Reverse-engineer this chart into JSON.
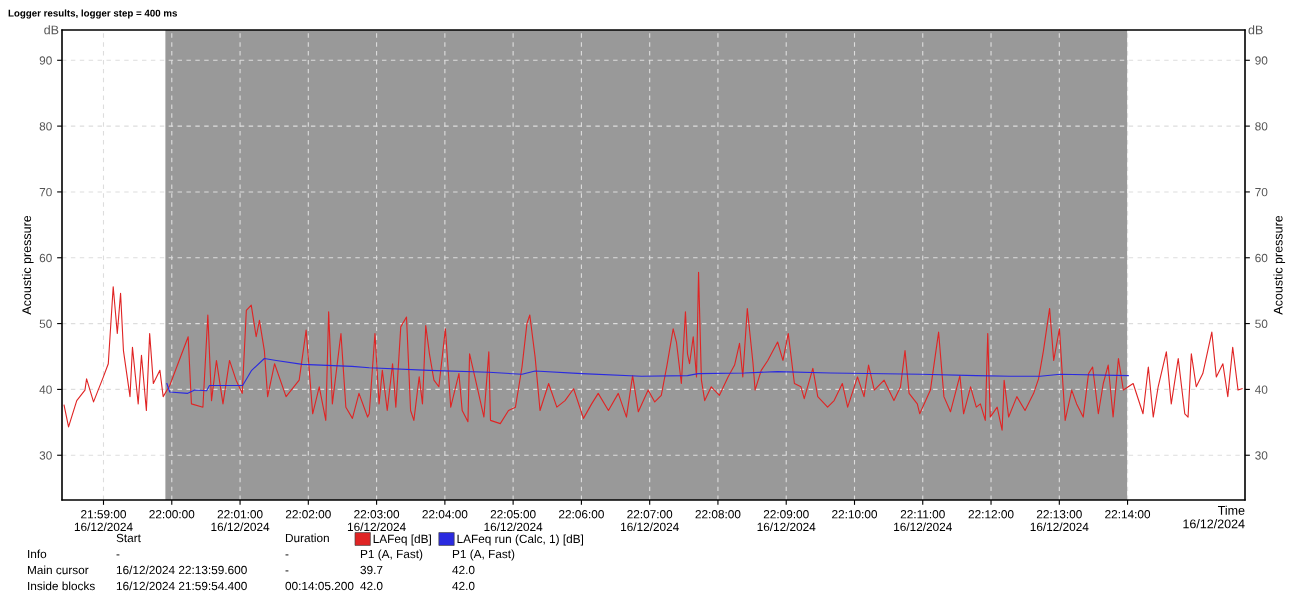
{
  "chart_data": {
    "type": "line",
    "title": "Logger results, logger step = 400 ms",
    "xlabel": "Time\n16/12/2024",
    "ylabel": "Acoustic pressure",
    "y2label": "Acoustic pressure",
    "annotations": [
      "dB",
      "dB",
      "Start",
      "Duration",
      "Info",
      "-",
      "-",
      "P1 (A, Fast)",
      "P1 (A, Fast)",
      "Main cursor",
      "16/12/2024 22:13:59.600",
      "-",
      "39.7",
      "42.0",
      "Inside blocks",
      "16/12/2024 21:59:54.400",
      "00:14:05.200",
      "42.0",
      "42.0"
    ],
    "series": [
      {
        "name": "LAFeq [dB]",
        "color": "#e02424",
        "x": [
          21.9737,
          21.9748,
          21.9768,
          21.9788,
          21.9792,
          21.9809,
          21.9833,
          21.9845,
          21.9857,
          21.9867,
          21.9875,
          21.9882,
          21.9898,
          21.9904,
          21.9918,
          21.9926,
          21.9938,
          21.9946,
          21.9955,
          21.9971,
          21.9979,
          21.9995,
          22.004,
          22.0048,
          22.0076,
          22.0088,
          22.0097,
          22.0109,
          22.0125,
          22.0141,
          22.0157,
          22.0172,
          22.0182,
          22.0194,
          22.0206,
          22.0214,
          22.0226,
          22.0234,
          22.0251,
          22.0279,
          22.0311,
          22.0328,
          22.0344,
          22.036,
          22.0376,
          22.0383,
          22.0392,
          22.0413,
          22.0425,
          22.0441,
          22.0457,
          22.0478,
          22.0482,
          22.0496,
          22.0506,
          22.0514,
          22.0526,
          22.0539,
          22.0547,
          22.0559,
          22.0573,
          22.0583,
          22.0591,
          22.0604,
          22.0612,
          22.062,
          22.0629,
          22.064,
          22.0652,
          22.0668,
          22.0681,
          22.0701,
          22.0709,
          22.0723,
          22.0727,
          22.0741,
          22.0762,
          22.0774,
          22.0778,
          22.0802,
          22.0822,
          22.0839,
          22.0855,
          22.0867,
          22.0874,
          22.0887,
          22.0899,
          22.092,
          22.094,
          22.096,
          22.0981,
          22.1005,
          22.1025,
          22.1041,
          22.1066,
          22.109,
          22.111,
          22.1125,
          22.1139,
          22.1163,
          22.1179,
          22.1195,
          22.1209,
          22.1224,
          22.1232,
          22.1244,
          22.1254,
          22.1259,
          22.1264,
          22.1273,
          22.1281,
          22.1286,
          22.1293,
          22.1301,
          22.1317,
          22.1337,
          22.1358,
          22.1374,
          22.1386,
          22.1394,
          22.1405,
          22.1419,
          22.1424,
          22.1439,
          22.1455,
          22.1479,
          22.1492,
          22.1505,
          22.152,
          22.1536,
          22.1544,
          22.1565,
          22.1577,
          22.1601,
          22.1617,
          22.1637,
          22.165,
          22.1674,
          22.169,
          22.1701,
          22.1715,
          22.1739,
          22.1763,
          22.1779,
          22.179,
          22.18,
          22.182,
          22.1826,
          22.1852,
          22.1872,
          22.1885,
          22.1901,
          22.1924,
          22.1933,
          22.195,
          22.1964,
          22.1974,
          22.1986,
          22.1992,
          22.1998,
          22.2015,
          22.2027,
          22.2032,
          22.2043,
          22.2063,
          22.2083,
          22.2104,
          22.2116,
          22.2128,
          22.2143,
          22.2153,
          22.2167,
          22.2181,
          22.2197,
          22.2209,
          22.2225,
          22.2238,
          22.2248,
          22.2262,
          22.2274,
          22.2286,
          22.2298,
          22.2311,
          22.2323,
          22.2335,
          22.2347,
          22.2371,
          22.2384,
          22.2396,
          22.2408,
          22.2428,
          22.244,
          22.2457,
          22.2473,
          22.2481,
          22.2489,
          22.2501,
          22.2517,
          22.2539,
          22.255,
          22.2566,
          22.2578,
          22.259,
          22.2603,
          22.2613
        ],
        "values": [
          37.6,
          34.3,
          38.3,
          39.9,
          41.6,
          38.1,
          41.9,
          43.9,
          55.6,
          48.5,
          54.6,
          45.9,
          38.9,
          46.4,
          37.8,
          45.2,
          36.8,
          48.5,
          40.9,
          42.9,
          38.9,
          40.6,
          48,
          37.8,
          37.3,
          51.3,
          38.3,
          44.4,
          37.8,
          44.4,
          41.4,
          39.4,
          52,
          52.8,
          48,
          50.5,
          45.9,
          38.9,
          43.9,
          38.9,
          41.4,
          49,
          36.3,
          40.4,
          35.3,
          51.8,
          37.8,
          48.5,
          37.3,
          35.6,
          39.4,
          35.8,
          36.3,
          48.5,
          37.8,
          42.9,
          36.8,
          43.9,
          37.3,
          49.5,
          51,
          36.8,
          35.3,
          41.9,
          37.8,
          49.7,
          45.4,
          41.4,
          40.4,
          49.2,
          37.3,
          42.4,
          36.8,
          35.1,
          45.4,
          41.6,
          35.8,
          45.7,
          35.3,
          34.8,
          36.8,
          37.3,
          43.4,
          50,
          51.3,
          44.9,
          36.8,
          40.9,
          37.3,
          38.3,
          40.1,
          35.6,
          37.8,
          39.4,
          36.8,
          39.4,
          35.8,
          42.1,
          36.6,
          39.9,
          38.1,
          39.1,
          43.7,
          49.2,
          47.2,
          40.9,
          51.8,
          45.4,
          43.9,
          48,
          41.9,
          57.8,
          41.4,
          38.3,
          40.4,
          39.1,
          41.9,
          43.7,
          47,
          41.9,
          52.3,
          43.9,
          39.9,
          42.9,
          44.4,
          47.2,
          44.4,
          48.5,
          40.9,
          40.4,
          38.6,
          43.2,
          38.9,
          37.3,
          38.3,
          40.9,
          37.3,
          41.9,
          38.9,
          43.7,
          39.9,
          41.4,
          38.3,
          40.4,
          45.9,
          39.4,
          37.8,
          36.3,
          39.9,
          48.7,
          38.9,
          36.6,
          42.1,
          36.3,
          40.4,
          37.3,
          37.8,
          35.3,
          48.5,
          35.8,
          37.3,
          33.8,
          41.4,
          35.8,
          38.9,
          36.8,
          39.4,
          41.6,
          45.9,
          52.3,
          44.4,
          49.2,
          35.3,
          39.9,
          37.8,
          35.8,
          42.4,
          43.4,
          36.3,
          40.9,
          43.7,
          35.8,
          44.7,
          39.9,
          40.4,
          40.9,
          36.3,
          43.4,
          35.8,
          40.4,
          45.7,
          37.8,
          44.7,
          36.3,
          35.8,
          45.4,
          40.4,
          42.4,
          48.7,
          41.9,
          43.9,
          38.9,
          46.4,
          39.9,
          40.1
        ]
      },
      {
        "name": "LAFeq run (Calc, 1) [dB]",
        "color": "#2a2ae0",
        "x": [
          21.9988,
          21.9995,
          22.0039,
          22.0056,
          22.0085,
          22.0092,
          22.0173,
          22.0195,
          22.0226,
          22.0255,
          22.0319,
          22.044,
          22.0482,
          22.0628,
          22.0774,
          22.0855,
          22.0887,
          22.1001,
          22.1147,
          22.1259,
          22.1285,
          22.1398,
          22.1479,
          22.1609,
          22.1828,
          22.1964,
          22.2047,
          22.212,
          22.2169,
          22.2335
        ],
        "values": [
          40.9,
          39.6,
          39.4,
          39.9,
          39.8,
          40.6,
          40.6,
          42.9,
          44.7,
          44.4,
          43.8,
          43.5,
          43.3,
          42.9,
          42.6,
          42.3,
          42.8,
          42.4,
          42,
          42.1,
          42.4,
          42.5,
          42.7,
          42.5,
          42.3,
          42.1,
          42,
          42,
          42.3,
          42.1
        ]
      }
    ],
    "bands": [
      {
        "axis": "x",
        "from": 21.99844,
        "to": 22.23322,
        "color": "#999999"
      }
    ],
    "xlim": [
      21.9732,
      22.262
    ],
    "ylim": [
      23.2,
      94.6
    ],
    "y2lim": [
      23.2,
      94.6
    ],
    "xticks": [
      {
        "value": 21.98333,
        "label": "21:59:00\n16/12/2024"
      },
      {
        "value": 22.0,
        "label": "22:00:00"
      },
      {
        "value": 22.01667,
        "label": "22:01:00\n16/12/2024"
      },
      {
        "value": 22.03333,
        "label": "22:02:00"
      },
      {
        "value": 22.05,
        "label": "22:03:00\n16/12/2024"
      },
      {
        "value": 22.06667,
        "label": "22:04:00"
      },
      {
        "value": 22.08333,
        "label": "22:05:00\n16/12/2024"
      },
      {
        "value": 22.1,
        "label": "22:06:00"
      },
      {
        "value": 22.11667,
        "label": "22:07:00\n16/12/2024"
      },
      {
        "value": 22.13333,
        "label": "22:08:00"
      },
      {
        "value": 22.15,
        "label": "22:09:00\n16/12/2024"
      },
      {
        "value": 22.16667,
        "label": "22:10:00"
      },
      {
        "value": 22.18333,
        "label": "22:11:00\n16/12/2024"
      },
      {
        "value": 22.2,
        "label": "22:12:00"
      },
      {
        "value": 22.21667,
        "label": "22:13:00\n16/12/2024"
      },
      {
        "value": 22.23333,
        "label": "22:14:00"
      }
    ],
    "yticks": [
      30,
      40,
      50,
      60,
      70,
      80,
      90
    ],
    "y2ticks": [
      30,
      40,
      50,
      60,
      70,
      80,
      90
    ],
    "grid": true,
    "legend": "bottom",
    "marker": "none",
    "line_style": "solid"
  }
}
